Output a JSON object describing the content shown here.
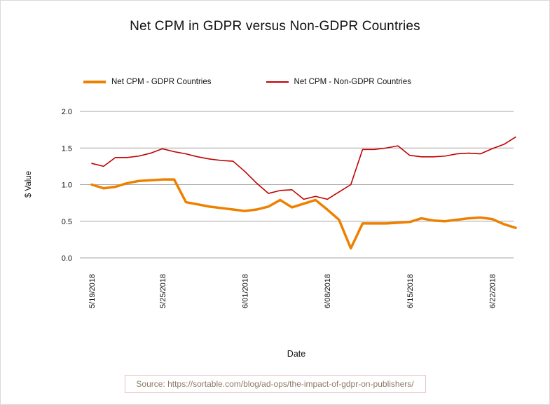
{
  "page": {
    "title": "Net CPM in GDPR versus Non-GDPR Countries",
    "ylabel": "$ Value",
    "xlabel": "Date",
    "source": "Source: https://sortable.com/blog/ad-ops/the-impact-of-gdpr-on-publishers/"
  },
  "colors": {
    "gdpr_line": "#EE8000",
    "non_gdpr_line": "#C00000",
    "gridline": "#a6a6a6"
  },
  "legend": [
    {
      "label": "Net CPM - GDPR Countries",
      "color": "#EE8000",
      "thickness": 4
    },
    {
      "label": "Net CPM - Non-GDPR Countries",
      "color": "#C00000",
      "thickness": 2
    }
  ],
  "chart_data": {
    "type": "line",
    "title": "Net CPM in GDPR versus Non-GDPR Countries",
    "xlabel": "Date",
    "ylabel": "$ Value",
    "ylim": [
      0,
      2
    ],
    "yticks": [
      0.0,
      0.5,
      1.0,
      1.5,
      2.0
    ],
    "grid": true,
    "legend_position": "top-left",
    "x": [
      "5/19/2018",
      "5/20/2018",
      "5/21/2018",
      "5/22/2018",
      "5/23/2018",
      "5/24/2018",
      "5/25/2018",
      "5/26/2018",
      "5/27/2018",
      "5/28/2018",
      "5/29/2018",
      "5/30/2018",
      "5/31/2018",
      "6/01/2018",
      "6/02/2018",
      "6/03/2018",
      "6/04/2018",
      "6/05/2018",
      "6/06/2018",
      "6/07/2018",
      "6/08/2018",
      "6/09/2018",
      "6/10/2018",
      "6/11/2018",
      "6/12/2018",
      "6/13/2018",
      "6/14/2018",
      "6/15/2018",
      "6/16/2018",
      "6/17/2018",
      "6/18/2018",
      "6/19/2018",
      "6/20/2018",
      "6/21/2018",
      "6/22/2018",
      "6/23/2018",
      "6/24/2018"
    ],
    "x_tick_labels": [
      "5/19/2018",
      "5/25/2018",
      "6/01/2018",
      "6/08/2018",
      "6/15/2018",
      "6/22/2018"
    ],
    "series": [
      {
        "name": "Net CPM - GDPR Countries",
        "color": "#EE8000",
        "width": 3.5,
        "values": [
          1.0,
          0.95,
          0.97,
          1.02,
          1.05,
          1.06,
          1.07,
          1.07,
          0.76,
          0.73,
          0.7,
          0.68,
          0.66,
          0.64,
          0.66,
          0.7,
          0.79,
          0.69,
          0.74,
          0.79,
          0.66,
          0.52,
          0.13,
          0.47,
          0.47,
          0.47,
          0.48,
          0.49,
          0.54,
          0.51,
          0.5,
          0.52,
          0.54,
          0.55,
          0.53,
          0.46,
          0.41
        ]
      },
      {
        "name": "Net CPM - Non-GDPR Countries",
        "color": "#C00000",
        "width": 1.6,
        "values": [
          1.29,
          1.25,
          1.37,
          1.37,
          1.39,
          1.43,
          1.49,
          1.45,
          1.42,
          1.38,
          1.35,
          1.33,
          1.32,
          1.18,
          1.02,
          0.88,
          0.92,
          0.93,
          0.8,
          0.84,
          0.8,
          0.9,
          1.0,
          1.48,
          1.48,
          1.5,
          1.53,
          1.4,
          1.38,
          1.38,
          1.39,
          1.42,
          1.43,
          1.42,
          1.49,
          1.55,
          1.65
        ]
      }
    ]
  }
}
